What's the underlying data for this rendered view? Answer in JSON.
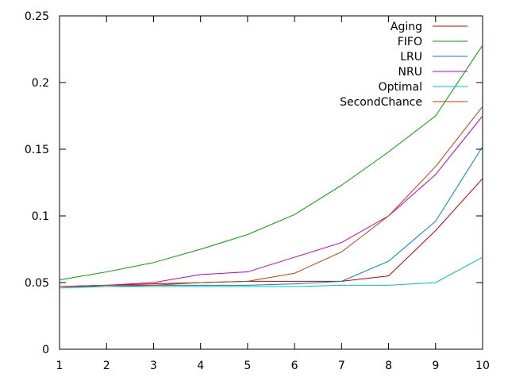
{
  "chart_data": {
    "type": "line",
    "x": [
      1,
      2,
      3,
      4,
      5,
      6,
      7,
      8,
      9,
      10
    ],
    "xlim": [
      1,
      10
    ],
    "ylim": [
      0,
      0.25
    ],
    "x_ticks": [
      1,
      2,
      3,
      4,
      5,
      6,
      7,
      8,
      9,
      10
    ],
    "y_ticks": [
      0,
      0.05,
      0.1,
      0.15,
      0.2,
      0.25
    ],
    "x_tick_labels": [
      "1",
      "2",
      "3",
      "4",
      "5",
      "6",
      "7",
      "8",
      "9",
      "10"
    ],
    "y_tick_labels": [
      "0",
      "0.05",
      "0.1",
      "0.15",
      "0.2",
      "0.25"
    ],
    "grid": false,
    "legend_position": "top-right",
    "series": [
      {
        "name": "Aging",
        "color": "#c00000",
        "values": [
          0.047,
          0.048,
          0.049,
          0.05,
          0.051,
          0.051,
          0.051,
          0.055,
          0.089,
          0.128
        ]
      },
      {
        "name": "FIFO",
        "color": "#00a000",
        "values": [
          0.052,
          0.058,
          0.065,
          0.075,
          0.086,
          0.101,
          0.123,
          0.148,
          0.175,
          0.228
        ]
      },
      {
        "name": "LRU",
        "color": "#0080c0",
        "values": [
          0.047,
          0.047,
          0.048,
          0.048,
          0.048,
          0.049,
          0.051,
          0.066,
          0.096,
          0.152
        ]
      },
      {
        "name": "NRU",
        "color": "#c000c0",
        "values": [
          0.047,
          0.048,
          0.05,
          0.056,
          0.058,
          0.069,
          0.08,
          0.1,
          0.131,
          0.175
        ]
      },
      {
        "name": "Optimal",
        "color": "#00c0c0",
        "values": [
          0.046,
          0.047,
          0.047,
          0.047,
          0.047,
          0.047,
          0.048,
          0.048,
          0.05,
          0.069
        ]
      },
      {
        "name": "SecondChance",
        "color": "#c04000",
        "values": [
          0.047,
          0.048,
          0.048,
          0.05,
          0.051,
          0.057,
          0.073,
          0.1,
          0.137,
          0.182
        ]
      }
    ]
  }
}
